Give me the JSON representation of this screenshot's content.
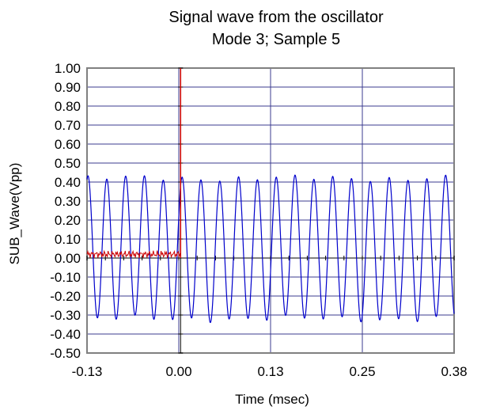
{
  "chart_data": {
    "type": "line",
    "title": "Signal wave from the oscillator",
    "subtitle": "Mode 3; Sample 5",
    "xlabel": "Time (msec)",
    "ylabel": "SUB_Wave(Vpp)",
    "xlim": [
      -0.13,
      0.38
    ],
    "ylim": [
      -0.5,
      1.0
    ],
    "x_tick_labels": [
      "-0.13",
      "0.00",
      "0.13",
      "0.25",
      "0.38"
    ],
    "y_tick_labels": [
      "1.00",
      "0.90",
      "0.80",
      "0.70",
      "0.60",
      "0.50",
      "0.40",
      "0.30",
      "0.20",
      "0.10",
      "0.00",
      "-0.10",
      "-0.20",
      "-0.30",
      "-0.40",
      "-0.50"
    ],
    "grid": true,
    "legend": "none",
    "series": [
      {
        "color": "#0000cc",
        "description_values": {
          "x_start": -0.13,
          "x_end": 0.38,
          "amplitude_max": 0.42,
          "amplitude_min": -0.32,
          "cycles": 19.5
        }
      },
      {
        "color": "#cc0000",
        "trigger_x": 0.0,
        "trigger_top": 1.0,
        "noise_x_range": [
          -0.13,
          0.0
        ],
        "noise_level": 0.02,
        "noise_amplitude": 0.02
      }
    ]
  },
  "colors": {
    "plot_border": "#808080",
    "grid": "#3b3b8f",
    "wave": "#0000cc",
    "trigger": "#cc0000",
    "zero_axis": "#000000"
  }
}
